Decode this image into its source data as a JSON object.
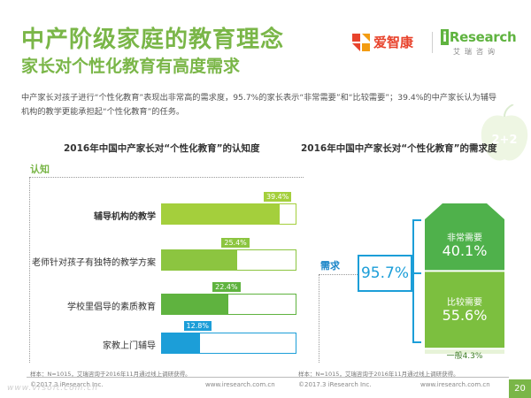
{
  "header": {
    "title": "中产阶级家庭的教育理念",
    "subtitle": "家长对个性化教育有高度需求"
  },
  "logos": {
    "aizhikang": "爱智康",
    "iresearch_i": "i",
    "iresearch_rest": "Research",
    "iresearch_cn": "艾瑞咨询"
  },
  "description": "中产家长对孩子进行“个性化教育”表现出非常高的需求度，95.7%的家长表示“非常需要”和“比较需要”；39.4%的中产家长认为辅导机构的教学更能承担起“个性化教育”的任务。",
  "deco_text": "2+2",
  "left_section": {
    "chart_title": "2016年中国中产家长对“个性化教育”的认知度",
    "tag": "认知"
  },
  "right_section": {
    "chart_title": "2016年中国中产家长对“个性化教育”的需求度",
    "tag": "需求"
  },
  "colors": {
    "brand_green": "#7ab648",
    "bar_light_green": "#a4cf3c",
    "bar_mid_green": "#8cc540",
    "bar_dark_green": "#5fb33f",
    "bar_blue": "#1c9ed8",
    "demand_top": "#4fb14b",
    "demand_bottom": "#7cbf3f"
  },
  "chart_data": [
    {
      "type": "bar",
      "orientation": "horizontal",
      "title": "2016年中国中产家长对“个性化教育”的认知度",
      "categories": [
        "辅导机构的教学",
        "老师针对孩子有独特的教学方案",
        "学校里倡导的素质教育",
        "家教上门辅导"
      ],
      "values": [
        39.4,
        25.4,
        22.4,
        12.8
      ],
      "labels": [
        "39.4%",
        "25.4%",
        "22.4%",
        "12.8%"
      ],
      "xlim": [
        0,
        45
      ]
    },
    {
      "type": "bar",
      "stacked": true,
      "title": "2016年中国中产家长对“个性化教育”的需求度",
      "categories": [
        "非常需要",
        "比较需要",
        "一般"
      ],
      "values": [
        40.1,
        55.6,
        4.3
      ],
      "labels": [
        "40.1%",
        "55.6%",
        "4.3%"
      ],
      "total_label": "95.7%"
    }
  ],
  "footer": {
    "note_left": "样本：N=1015，艾瑞咨询于2016年11月通过线上调研获得。",
    "note_right": "样本：N=1015，艾瑞咨询于2016年11月通过线上调研获得。",
    "copy_left": "©2017.3 iResearch Inc.",
    "url_left": "www.iresearch.com.cn",
    "copy_right": "©2017.3 iResearch Inc.",
    "url_right": "www.iresearch.com.cn",
    "page": "20",
    "watermark": "www.vrsoft.com.cn"
  }
}
